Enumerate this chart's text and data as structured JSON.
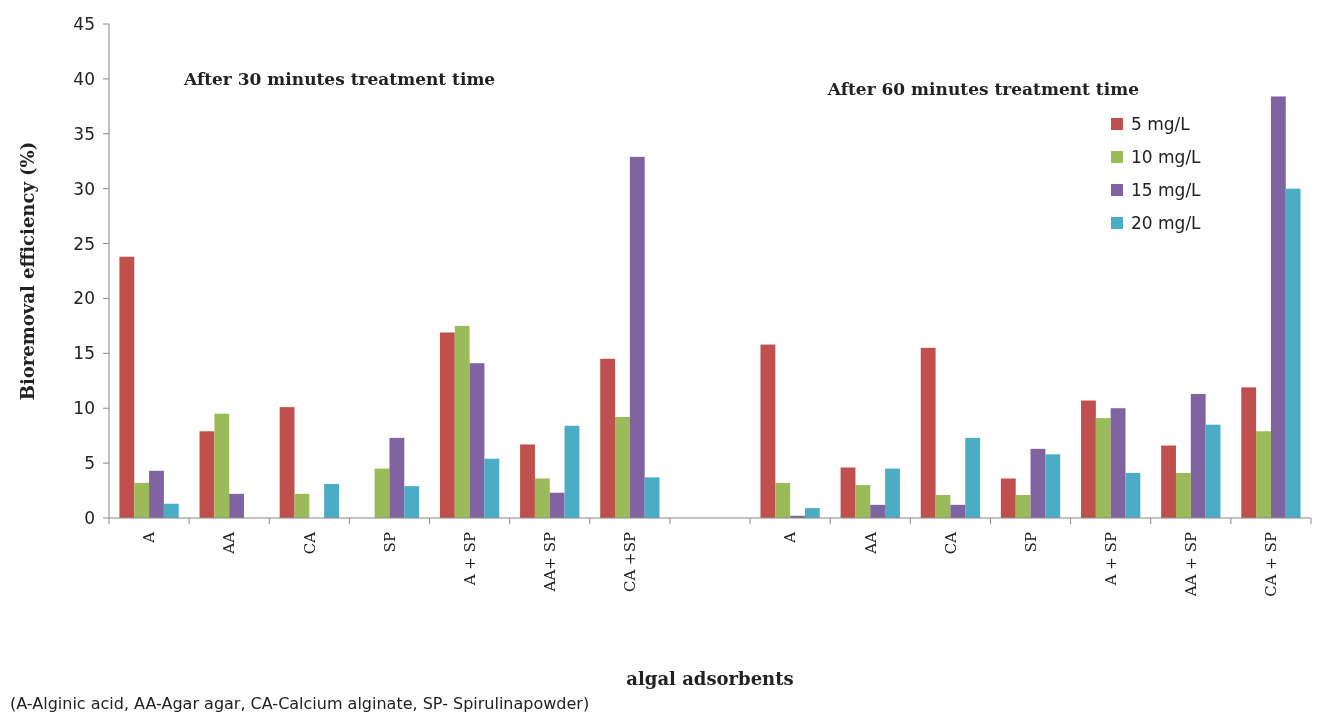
{
  "chart_data": {
    "type": "bar",
    "xlabel": "algal adsorbents",
    "ylabel": "Bioremoval efficiency (%)",
    "categories": [
      "A",
      "AA",
      "CA",
      "SP",
      "A + SP",
      "AA+ SP",
      "CA +SP",
      null,
      "A",
      "AA",
      "CA",
      "SP",
      "A + SP",
      "AA + SP",
      "CA + SP"
    ],
    "series": [
      {
        "name": "5 mg/L",
        "color": "#c0504d",
        "values": [
          23.8,
          7.9,
          10.1,
          null,
          16.9,
          6.7,
          14.5,
          null,
          15.8,
          4.6,
          15.5,
          3.6,
          10.7,
          6.6,
          11.9
        ]
      },
      {
        "name": "10 mg/L",
        "color": "#9bbb59",
        "values": [
          3.2,
          9.5,
          2.2,
          4.5,
          17.5,
          3.6,
          9.2,
          null,
          3.2,
          3.0,
          2.1,
          2.1,
          9.1,
          4.1,
          7.9
        ]
      },
      {
        "name": "15 mg/L",
        "color": "#8064a2",
        "values": [
          4.3,
          2.2,
          null,
          7.3,
          14.1,
          2.3,
          32.9,
          null,
          0.2,
          1.2,
          1.2,
          6.3,
          10.0,
          11.3,
          38.4
        ]
      },
      {
        "name": "20 mg/L",
        "color": "#4bacc6",
        "values": [
          1.3,
          null,
          3.1,
          2.9,
          5.4,
          8.4,
          3.7,
          null,
          0.9,
          4.5,
          7.3,
          5.8,
          4.1,
          8.5,
          30.0
        ]
      }
    ],
    "ylim": [
      0,
      45
    ],
    "yticks": [
      0,
      5,
      10,
      15,
      20,
      25,
      30,
      35,
      40,
      45
    ],
    "grid": false,
    "legend": "top right",
    "annotations": [
      "After 30 minutes treatment time",
      "After 60 minutes treatment time",
      "(A-Alginic acid, AA-Agar agar, CA-Calcium alginate, SP- Spirulinapowder)"
    ]
  }
}
